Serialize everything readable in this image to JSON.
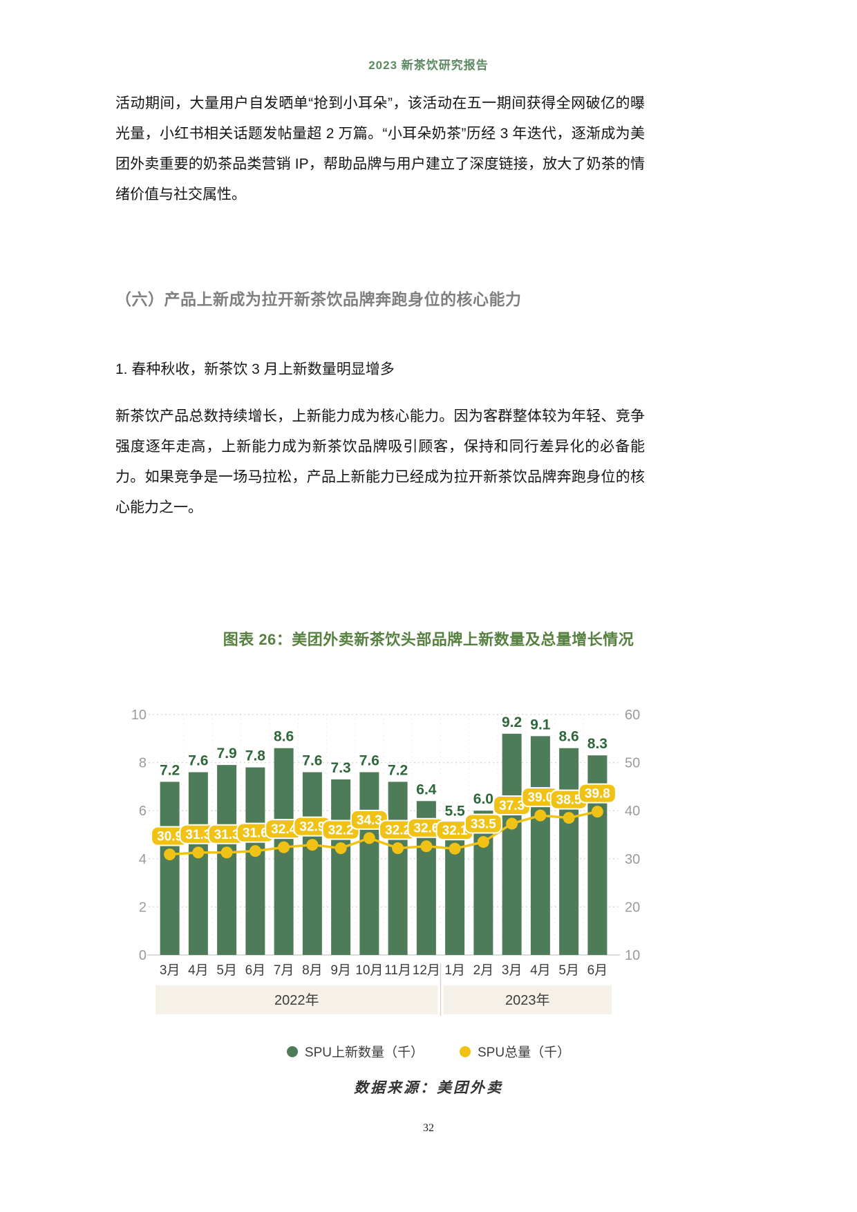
{
  "page": {
    "header": "2023 新茶饮研究报告",
    "page_number": "32"
  },
  "content": {
    "paragraph1": "活动期间，大量用户自发晒单“抢到小耳朵”，该活动在五一期间获得全网破亿的曝光量，小红书相关话题发帖量超 2 万篇。“小耳朵奶茶”历经 3 年迭代，逐渐成为美团外卖重要的奶茶品类营销 IP，帮助品牌与用户建立了深度链接，放大了奶茶的情绪价值与社交属性。",
    "section_heading": "（六）产品上新成为拉开新茶饮品牌奔跑身位的核心能力",
    "item_heading": "1.  春种秋收，新茶饮 3 月上新数量明显增多",
    "paragraph2": "新茶饮产品总数持续增长，上新能力成为核心能力。因为客群整体较为年轻、竞争强度逐年走高，上新能力成为新茶饮品牌吸引顾客，保持和同行差异化的必备能力。如果竞争是一场马拉松，产品上新能力已经成为拉开新茶饮品牌奔跑身位的核心能力之一。",
    "source": "数据来源：美团外卖"
  },
  "chart_data": {
    "type": "bar",
    "subtype": "bar+line combo, dual axis",
    "title": "图表 26：美团外卖新茶饮头部品牌上新数量及总量增长情况",
    "categories": [
      "3月",
      "4月",
      "5月",
      "6月",
      "7月",
      "8月",
      "9月",
      "10月",
      "11月",
      "12月",
      "1月",
      "2月",
      "3月",
      "4月",
      "5月",
      "6月"
    ],
    "year_groups": [
      {
        "label": "2022年",
        "start": 0,
        "end": 9
      },
      {
        "label": "2023年",
        "start": 10,
        "end": 15
      }
    ],
    "series": [
      {
        "name": "SPU上新数量（千）",
        "kind": "bar",
        "axis": "left",
        "values": [
          7.2,
          7.6,
          7.9,
          7.8,
          8.6,
          7.6,
          7.3,
          7.6,
          7.2,
          6.4,
          5.5,
          6.0,
          9.2,
          9.1,
          8.6,
          8.3
        ]
      },
      {
        "name": "SPU总量（千）",
        "kind": "line",
        "axis": "right",
        "values": [
          30.9,
          31.3,
          31.3,
          31.6,
          32.4,
          32.9,
          32.2,
          34.3,
          32.2,
          32.6,
          32.1,
          33.5,
          37.3,
          39.0,
          38.5,
          39.8
        ]
      }
    ],
    "left_axis": {
      "min": 0,
      "max": 10,
      "ticks": [
        0,
        2,
        4,
        6,
        8,
        10
      ]
    },
    "right_axis": {
      "min": 10,
      "max": 60,
      "ticks": [
        10,
        20,
        30,
        40,
        50,
        60
      ]
    },
    "grid": "dotted horizontal and faint vertical",
    "legend_position": "bottom"
  },
  "colors": {
    "header_green": "#5b8a61",
    "section_heading_gray": "#7f7f7f",
    "chart_title_green": "#55803f",
    "bar_green": "#4f7c58",
    "bar_label_green": "#2e673a",
    "line_yellow": "#f1c216",
    "badge_text": "#ffffff",
    "axis_label_gray": "#9b9b9b",
    "x_label_dark": "#3c3c3c",
    "year_band_bg": "#f5f0e8",
    "gridline": "#ddd8cf",
    "baseline": "#cfcfcf",
    "divider": "#d8d4cc"
  }
}
